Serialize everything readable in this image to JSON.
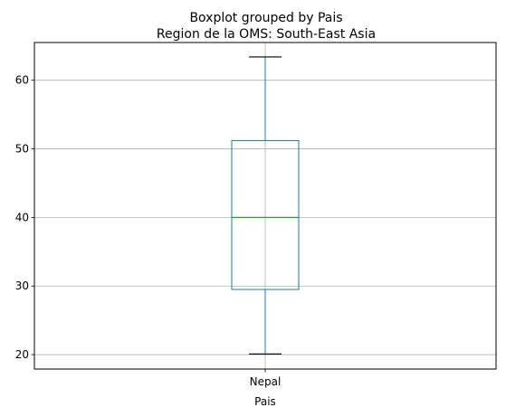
{
  "chart_data": {
    "type": "box",
    "suptitle": "Boxplot grouped by Pais",
    "title": "Region de la OMS: South-East Asia",
    "xlabel": "Pais",
    "ylabel": "",
    "categories": [
      "Nepal"
    ],
    "boxes": [
      {
        "category": "Nepal",
        "whisker_low": 20.1,
        "q1": 29.5,
        "median": 40.0,
        "q3": 51.2,
        "whisker_high": 63.4
      }
    ],
    "ylim": [
      17.9,
      65.5
    ],
    "yticks": [
      20,
      30,
      40,
      50,
      60
    ],
    "grid": true,
    "colors": {
      "box": "#1f77b4",
      "median": "#2ca02c",
      "whisker_cap": "#000000",
      "grid": "#b0b0b0"
    }
  }
}
